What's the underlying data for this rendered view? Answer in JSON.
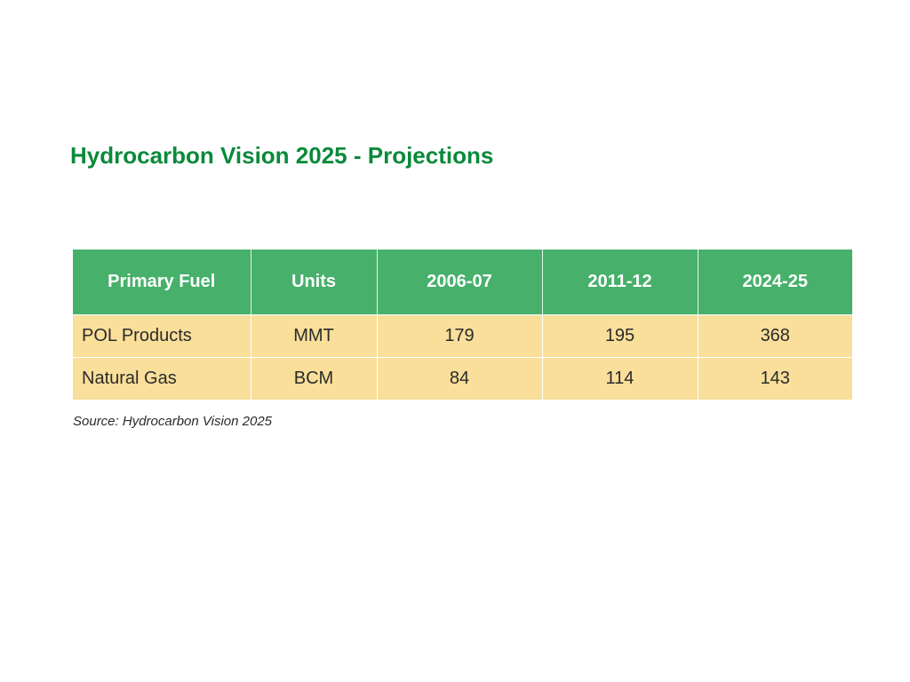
{
  "slide": {
    "title": "Hydrocarbon Vision 2025 - Projections"
  },
  "table": {
    "headers": [
      "Primary Fuel",
      "Units",
      "2006-07",
      "2011-12",
      "2024-25"
    ],
    "rows": [
      [
        "POL Products",
        "MMT",
        "179",
        "195",
        "368"
      ],
      [
        "Natural Gas",
        "BCM",
        "84",
        "114",
        "143"
      ]
    ]
  },
  "source": "Source: Hydrocarbon Vision 2025",
  "colors": {
    "title": "#0a8a3a",
    "header_bg": "#47b06b",
    "row_bg": "#fadf9a"
  }
}
